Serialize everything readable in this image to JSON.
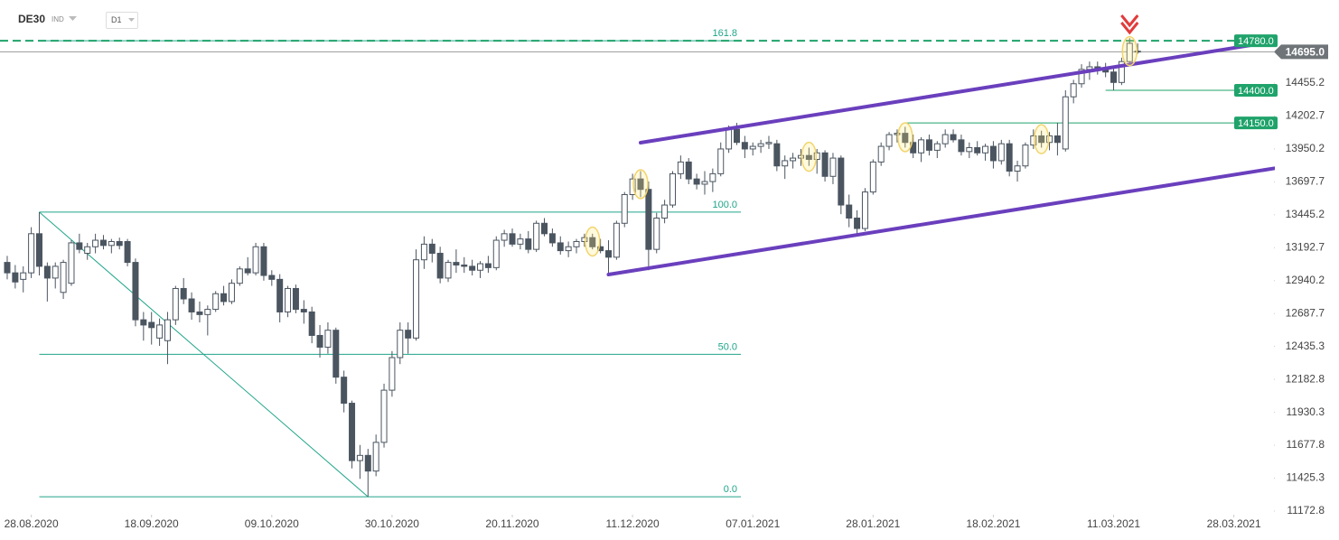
{
  "header": {
    "symbol": "DE30",
    "market": "IND",
    "interval": "D1"
  },
  "chart_data": {
    "type": "candlestick",
    "xlim": [
      -0.9,
      158
    ],
    "ylim": [
      11145.1,
      15092.3
    ],
    "xticks": [
      {
        "value": 3,
        "label": "28.08.2020"
      },
      {
        "value": 18,
        "label": "18.09.2020"
      },
      {
        "value": 33,
        "label": "09.10.2020"
      },
      {
        "value": 48,
        "label": "30.10.2020"
      },
      {
        "value": 63,
        "label": "20.11.2020"
      },
      {
        "value": 78,
        "label": "11.12.2020"
      },
      {
        "value": 93,
        "label": "07.01.2021"
      },
      {
        "value": 108,
        "label": "28.01.2021"
      },
      {
        "value": 123,
        "label": "18.02.2021"
      },
      {
        "value": 138,
        "label": "11.03.2021"
      },
      {
        "value": 153,
        "label": "28.03.2021"
      }
    ],
    "yticks": [
      11172.8,
      11425.3,
      11677.8,
      11930.3,
      12182.8,
      12435.3,
      12687.7,
      12940.2,
      13192.7,
      13445.2,
      13697.7,
      13950.2,
      14202.7,
      14455.2
    ],
    "up_color": "#ffffff",
    "down_color": "#4b5560",
    "wick_color": "#4b5560",
    "ohlc": [
      [
        13080,
        13130,
        12950,
        13000
      ],
      [
        13000,
        13060,
        12880,
        12930
      ],
      [
        12950,
        13050,
        12850,
        13000
      ],
      [
        13000,
        13350,
        12960,
        13300
      ],
      [
        13300,
        13466,
        12980,
        13050
      ],
      [
        13050,
        13080,
        12780,
        12960
      ],
      [
        12960,
        13080,
        12880,
        13050
      ],
      [
        12850,
        13100,
        12800,
        13080
      ],
      [
        12920,
        13250,
        12900,
        13230
      ],
      [
        13230,
        13300,
        13150,
        13180
      ],
      [
        13150,
        13230,
        13100,
        13200
      ],
      [
        13200,
        13300,
        13150,
        13250
      ],
      [
        13250,
        13290,
        13180,
        13210
      ],
      [
        13210,
        13260,
        13150,
        13240
      ],
      [
        13240,
        13270,
        13180,
        13210
      ],
      [
        13240,
        13260,
        13050,
        13080
      ],
      [
        13080,
        13110,
        12590,
        12640
      ],
      [
        12640,
        12700,
        12480,
        12600
      ],
      [
        12620,
        12700,
        12450,
        12580
      ],
      [
        12500,
        12650,
        12440,
        12600
      ],
      [
        12480,
        12700,
        12300,
        12640
      ],
      [
        12640,
        12900,
        12600,
        12880
      ],
      [
        12880,
        12960,
        12760,
        12800
      ],
      [
        12800,
        12850,
        12640,
        12700
      ],
      [
        12700,
        12780,
        12620,
        12680
      ],
      [
        12680,
        12750,
        12520,
        12720
      ],
      [
        12720,
        12860,
        12700,
        12840
      ],
      [
        12840,
        12900,
        12750,
        12780
      ],
      [
        12780,
        12950,
        12760,
        12920
      ],
      [
        12920,
        13050,
        12900,
        13030
      ],
      [
        13030,
        13120,
        12980,
        13000
      ],
      [
        13000,
        13230,
        12980,
        13200
      ],
      [
        13200,
        13230,
        12940,
        12980
      ],
      [
        12980,
        13020,
        12900,
        12950
      ],
      [
        12950,
        12990,
        12620,
        12700
      ],
      [
        12700,
        12900,
        12660,
        12880
      ],
      [
        12880,
        12910,
        12690,
        12720
      ],
      [
        12720,
        12790,
        12610,
        12700
      ],
      [
        12700,
        12740,
        12460,
        12520
      ],
      [
        12520,
        12600,
        12350,
        12430
      ],
      [
        12430,
        12620,
        12380,
        12560
      ],
      [
        12560,
        12580,
        12150,
        12200
      ],
      [
        12200,
        12250,
        11930,
        12000
      ],
      [
        12000,
        12020,
        11500,
        11560
      ],
      [
        11560,
        11680,
        11420,
        11600
      ],
      [
        11600,
        11650,
        11283,
        11480
      ],
      [
        11480,
        11760,
        11440,
        11700
      ],
      [
        11700,
        12150,
        11660,
        12100
      ],
      [
        12100,
        12400,
        12050,
        12350
      ],
      [
        12350,
        12620,
        12300,
        12560
      ],
      [
        12560,
        12620,
        12380,
        12500
      ],
      [
        12500,
        13180,
        12480,
        13100
      ],
      [
        13100,
        13280,
        13030,
        13220
      ],
      [
        13220,
        13260,
        13080,
        13150
      ],
      [
        13150,
        13200,
        12920,
        12960
      ],
      [
        12960,
        13100,
        12930,
        13080
      ],
      [
        13080,
        13180,
        13000,
        13060
      ],
      [
        13060,
        13120,
        13000,
        13050
      ],
      [
        13050,
        13100,
        12980,
        13020
      ],
      [
        13020,
        13090,
        12960,
        13070
      ],
      [
        13070,
        13130,
        13000,
        13040
      ],
      [
        13040,
        13280,
        13020,
        13250
      ],
      [
        13250,
        13330,
        13200,
        13300
      ],
      [
        13300,
        13340,
        13200,
        13220
      ],
      [
        13220,
        13300,
        13180,
        13260
      ],
      [
        13260,
        13320,
        13150,
        13180
      ],
      [
        13180,
        13400,
        13160,
        13380
      ],
      [
        13380,
        13420,
        13280,
        13300
      ],
      [
        13300,
        13340,
        13200,
        13230
      ],
      [
        13230,
        13280,
        13140,
        13170
      ],
      [
        13170,
        13240,
        13120,
        13200
      ],
      [
        13200,
        13260,
        13150,
        13240
      ],
      [
        13240,
        13300,
        13200,
        13270
      ],
      [
        13270,
        13300,
        13180,
        13200
      ],
      [
        13200,
        13260,
        13150,
        13170
      ],
      [
        13170,
        13250,
        13000,
        13120
      ],
      [
        13120,
        13400,
        13100,
        13380
      ],
      [
        13380,
        13620,
        13350,
        13600
      ],
      [
        13600,
        13760,
        13560,
        13720
      ],
      [
        13720,
        13780,
        13580,
        13640
      ],
      [
        13640,
        13700,
        13020,
        13180
      ],
      [
        13180,
        13460,
        13150,
        13420
      ],
      [
        13420,
        13560,
        13380,
        13520
      ],
      [
        13520,
        13780,
        13500,
        13760
      ],
      [
        13760,
        13900,
        13720,
        13850
      ],
      [
        13850,
        13880,
        13680,
        13720
      ],
      [
        13720,
        13760,
        13640,
        13680
      ],
      [
        13680,
        13780,
        13600,
        13700
      ],
      [
        13700,
        13800,
        13620,
        13760
      ],
      [
        13760,
        14000,
        13740,
        13950
      ],
      [
        13950,
        14130,
        13920,
        14100
      ],
      [
        14100,
        14150,
        13980,
        14000
      ],
      [
        14000,
        14050,
        13880,
        13950
      ],
      [
        13950,
        14000,
        13900,
        13970
      ],
      [
        13970,
        14020,
        13920,
        13990
      ],
      [
        13990,
        14050,
        13950,
        14000
      ],
      [
        13990,
        14020,
        13780,
        13820
      ],
      [
        13820,
        13900,
        13720,
        13860
      ],
      [
        13860,
        13920,
        13800,
        13880
      ],
      [
        13880,
        13950,
        13820,
        13900
      ],
      [
        13900,
        13960,
        13820,
        13870
      ],
      [
        13870,
        13950,
        13760,
        13920
      ],
      [
        13920,
        13940,
        13700,
        13740
      ],
      [
        13740,
        13920,
        13680,
        13880
      ],
      [
        13880,
        13900,
        13450,
        13520
      ],
      [
        13520,
        13600,
        13350,
        13420
      ],
      [
        13420,
        13480,
        13280,
        13340
      ],
      [
        13340,
        13650,
        13320,
        13620
      ],
      [
        13620,
        13870,
        13600,
        13850
      ],
      [
        13850,
        14000,
        13820,
        13970
      ],
      [
        13970,
        14080,
        13940,
        14060
      ],
      [
        14060,
        14100,
        14000,
        14070
      ],
      [
        14070,
        14120,
        13960,
        14000
      ],
      [
        14000,
        14060,
        13880,
        13920
      ],
      [
        13920,
        14040,
        13850,
        14020
      ],
      [
        14020,
        14060,
        13900,
        13940
      ],
      [
        13940,
        14010,
        13880,
        13990
      ],
      [
        13990,
        14100,
        13960,
        14060
      ],
      [
        14060,
        14100,
        14000,
        14020
      ],
      [
        14020,
        14060,
        13900,
        13930
      ],
      [
        13930,
        14000,
        13880,
        13960
      ],
      [
        13960,
        14010,
        13900,
        13920
      ],
      [
        13920,
        13990,
        13860,
        13970
      ],
      [
        13970,
        14010,
        13800,
        13860
      ],
      [
        13860,
        14020,
        13830,
        13990
      ],
      [
        13990,
        14020,
        13740,
        13780
      ],
      [
        13780,
        13860,
        13700,
        13820
      ],
      [
        13820,
        14000,
        13800,
        13980
      ],
      [
        13980,
        14100,
        13950,
        14050
      ],
      [
        14050,
        14090,
        13960,
        14000
      ],
      [
        14000,
        14080,
        13940,
        14050
      ],
      [
        14050,
        14150,
        13900,
        14000
      ],
      [
        13950,
        14400,
        13930,
        14350
      ],
      [
        14350,
        14480,
        14300,
        14450
      ],
      [
        14450,
        14600,
        14420,
        14560
      ],
      [
        14560,
        14620,
        14480,
        14580
      ],
      [
        14580,
        14620,
        14520,
        14560
      ],
      [
        14560,
        14610,
        14500,
        14540
      ],
      [
        14540,
        14580,
        14400,
        14460
      ],
      [
        14460,
        14650,
        14440,
        14620
      ],
      [
        14620,
        14800,
        14600,
        14760
      ],
      [
        14700,
        14760,
        14680,
        14695
      ]
    ],
    "fibonacci": {
      "color": "#20a58a",
      "anchors": [
        [
          4,
          13466
        ],
        [
          45,
          11283
        ]
      ],
      "levels": [
        {
          "label": "0.0",
          "price": 11283
        },
        {
          "label": "50.0",
          "price": 12375
        },
        {
          "label": "100.0",
          "price": 13466
        },
        {
          "label": "161.8",
          "price": 14780
        }
      ]
    },
    "trendlines": [
      {
        "color": "#6a3fbd",
        "points": [
          [
            79,
            13998
          ],
          [
            158,
            14774
          ]
        ]
      },
      {
        "color": "#6a3fbd",
        "points": [
          [
            75,
            12987
          ],
          [
            158.3,
            13804
          ]
        ]
      }
    ],
    "resistance": {
      "value": 14780,
      "label": "14780.0",
      "color": "#1fa36b"
    },
    "levels": [
      {
        "value": 14400,
        "label": "14400.0",
        "start": 137
      },
      {
        "value": 14150,
        "label": "14150.0",
        "start": 112
      }
    ],
    "last_price": {
      "value": 14695,
      "label": "14695.0"
    },
    "highlights": [
      73,
      79,
      100,
      112,
      129,
      140
    ],
    "signal": {
      "index": 140,
      "color": "#e23b3b"
    }
  }
}
